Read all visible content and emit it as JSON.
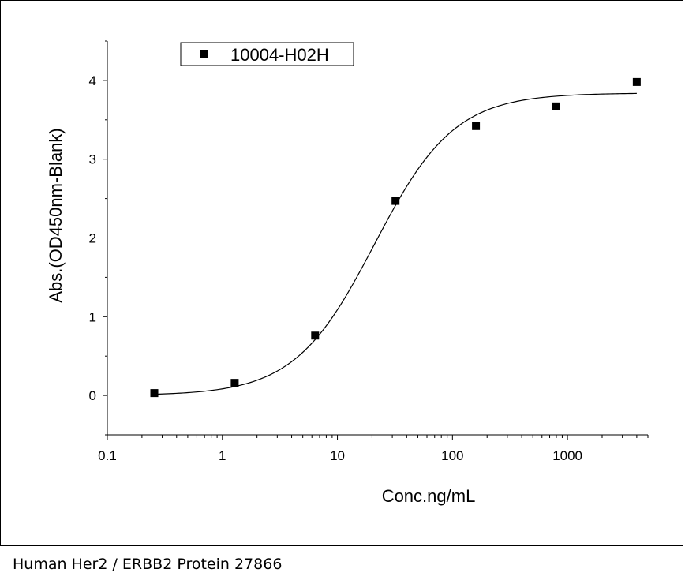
{
  "caption": "Human Her2 / ERBB2 Protein 27866",
  "chart_data": {
    "type": "scatter",
    "x_scale": "log",
    "xlabel": "Conc.ng/mL",
    "ylabel": "Abs.(OD450nm-Blank)",
    "xlim": [
      0.1,
      5000
    ],
    "ylim": [
      -0.5,
      4.5
    ],
    "x_ticks": [
      0.1,
      1,
      10,
      100,
      1000
    ],
    "x_tick_labels": [
      "0.1",
      "1",
      "10",
      "100",
      "1000"
    ],
    "y_ticks": [
      0,
      1,
      2,
      3,
      4
    ],
    "y_tick_labels": [
      "0",
      "1",
      "2",
      "3",
      "4"
    ],
    "legend_position": "top-left",
    "grid": false,
    "series": [
      {
        "name": "10004-H02H",
        "marker": "square",
        "color": "#000000",
        "x": [
          0.256,
          1.28,
          6.4,
          32,
          160,
          800,
          4000
        ],
        "y": [
          0.03,
          0.16,
          0.76,
          2.47,
          3.42,
          3.67,
          3.98
        ],
        "fit": "4PL",
        "fit_params": {
          "bottom": 0.0,
          "top": 3.84,
          "ec50": 21,
          "hill": 1.25
        }
      }
    ]
  }
}
